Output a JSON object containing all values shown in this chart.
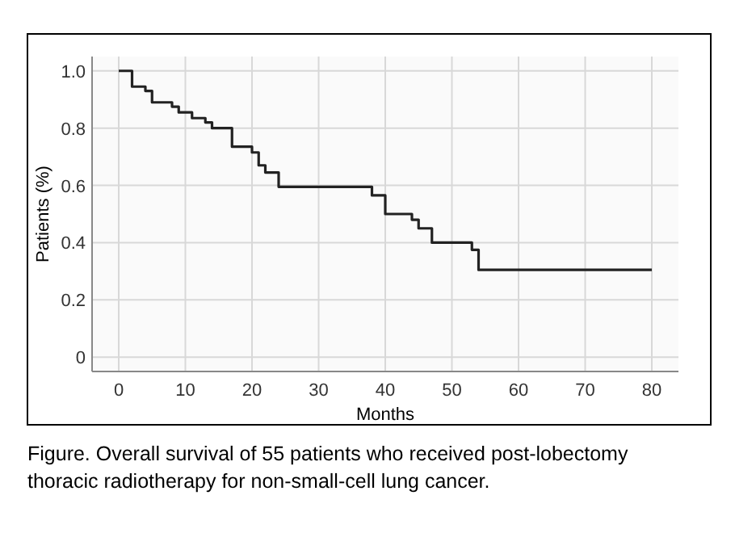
{
  "chart_data": {
    "type": "step",
    "xlabel": "Months",
    "ylabel": "Patients (%)",
    "x": [
      0,
      2,
      4,
      5,
      8,
      9,
      11,
      13,
      14,
      17,
      20,
      21,
      22,
      24,
      38,
      40,
      44,
      45,
      47,
      53,
      54,
      80
    ],
    "series": [
      {
        "color": "#222222",
        "values": [
          1.0,
          0.945,
          0.93,
          0.89,
          0.875,
          0.855,
          0.835,
          0.82,
          0.8,
          0.735,
          0.715,
          0.67,
          0.645,
          0.595,
          0.565,
          0.5,
          0.48,
          0.45,
          0.4,
          0.375,
          0.305,
          0.305
        ]
      }
    ],
    "xlim": [
      -4,
      84
    ],
    "xticks": [
      0,
      10,
      20,
      30,
      40,
      50,
      60,
      70,
      80
    ],
    "ylim": [
      -0.05,
      1.05
    ],
    "yticks": [
      {
        "value": 0,
        "label": "0"
      },
      {
        "value": 0.2,
        "label": "0.2"
      },
      {
        "value": 0.4,
        "label": "0.4"
      },
      {
        "value": 0.6,
        "label": "0.6"
      },
      {
        "value": 0.8,
        "label": "0.8"
      },
      {
        "value": 1,
        "label": "1.0"
      }
    ],
    "grid": true,
    "line_style": "solid",
    "marker": "none",
    "annotations": [
      "Figure. Overall survival of 55 patients who received post-lobectomy thoracic radiotherapy for non-small-cell lung cancer."
    ]
  }
}
